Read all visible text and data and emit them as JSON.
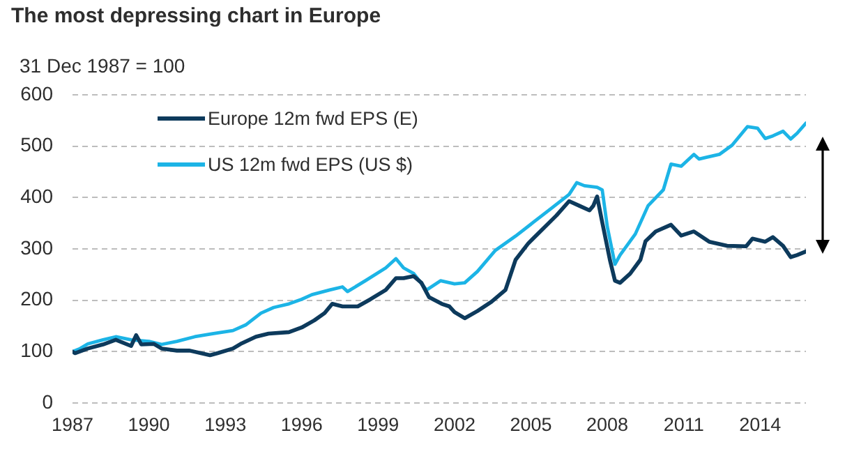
{
  "chart_data": {
    "type": "line",
    "title": "The most depressing chart in Europe",
    "subtitle": "31 Dec 1987 = 100",
    "xlim": [
      1987,
      2015.8
    ],
    "xticks": [
      1987,
      1990,
      1993,
      1996,
      1999,
      2002,
      2005,
      2008,
      2011,
      2014
    ],
    "ylim": [
      0,
      600
    ],
    "yticks": [
      0,
      100,
      200,
      300,
      400,
      500,
      600
    ],
    "grid": "y",
    "legend": "top left",
    "series": [
      {
        "name": "Europe 12m fwd EPS (E)",
        "color": "#0d3a5c",
        "x": [
          1987.0,
          1987.1,
          1987.6,
          1988.2,
          1988.7,
          1989.3,
          1989.5,
          1989.7,
          1990.2,
          1990.5,
          1991.1,
          1991.6,
          1992.4,
          1992.7,
          1993.3,
          1993.6,
          1994.2,
          1994.7,
          1995.5,
          1996.0,
          1996.5,
          1996.9,
          1997.2,
          1997.6,
          1998.2,
          1998.7,
          1999.3,
          1999.7,
          2000.0,
          2000.4,
          2000.7,
          2001.0,
          2001.5,
          2001.8,
          2002.0,
          2002.4,
          2002.9,
          2003.45,
          2004.0,
          2004.4,
          2004.9,
          2005.45,
          2006.0,
          2006.5,
          2006.9,
          2007.3,
          2007.45,
          2007.6,
          2007.8,
          2008.1,
          2008.3,
          2008.5,
          2008.9,
          2009.3,
          2009.5,
          2009.9,
          2010.5,
          2010.9,
          2011.4,
          2012.0,
          2012.7,
          2013.45,
          2013.7,
          2014.2,
          2014.5,
          2014.9,
          2015.2,
          2015.45,
          2015.8
        ],
        "values": [
          100,
          97,
          106,
          114,
          123,
          111,
          132,
          114,
          115,
          106,
          102,
          102,
          93,
          97,
          106,
          115,
          129,
          135,
          138,
          147,
          161,
          175,
          193,
          188,
          188,
          202,
          220,
          243,
          243,
          247,
          234,
          206,
          193,
          188,
          177,
          165,
          179,
          197,
          220,
          279,
          311,
          338,
          365,
          393,
          384,
          375,
          384,
          402,
          352,
          279,
          238,
          234,
          252,
          279,
          315,
          334,
          347,
          326,
          334,
          314,
          306,
          305,
          320,
          314,
          323,
          306,
          284,
          288,
          295
        ]
      },
      {
        "name": "US 12m fwd EPS (US $)",
        "color": "#1cb4e6",
        "x": [
          1987.0,
          1987.3,
          1987.6,
          1988.2,
          1988.7,
          1989.3,
          1990.0,
          1990.5,
          1991.1,
          1991.8,
          1992.5,
          1993.3,
          1993.8,
          1994.4,
          1994.9,
          1995.5,
          1996.0,
          1996.4,
          1997.1,
          1997.6,
          1997.8,
          1998.5,
          1999.3,
          1999.7,
          2000.0,
          2000.4,
          2000.9,
          2001.45,
          2002.0,
          2002.4,
          2002.9,
          2003.6,
          2004.4,
          2005.1,
          2005.8,
          2006.5,
          2006.8,
          2007.1,
          2007.6,
          2007.8,
          2008.0,
          2008.3,
          2008.5,
          2009.1,
          2009.6,
          2010.2,
          2010.5,
          2010.9,
          2011.4,
          2011.6,
          2012.4,
          2012.9,
          2013.5,
          2013.9,
          2014.2,
          2014.5,
          2014.9,
          2015.2,
          2015.45,
          2015.8
        ],
        "values": [
          100,
          106,
          115,
          123,
          129,
          123,
          120,
          114,
          120,
          129,
          135,
          141,
          152,
          175,
          186,
          193,
          202,
          211,
          220,
          226,
          217,
          238,
          263,
          281,
          263,
          252,
          220,
          238,
          232,
          234,
          256,
          297,
          325,
          352,
          379,
          406,
          429,
          423,
          420,
          415,
          343,
          270,
          288,
          329,
          384,
          415,
          465,
          461,
          484,
          475,
          484,
          502,
          538,
          535,
          515,
          520,
          529,
          514,
          525,
          545
        ]
      }
    ]
  }
}
